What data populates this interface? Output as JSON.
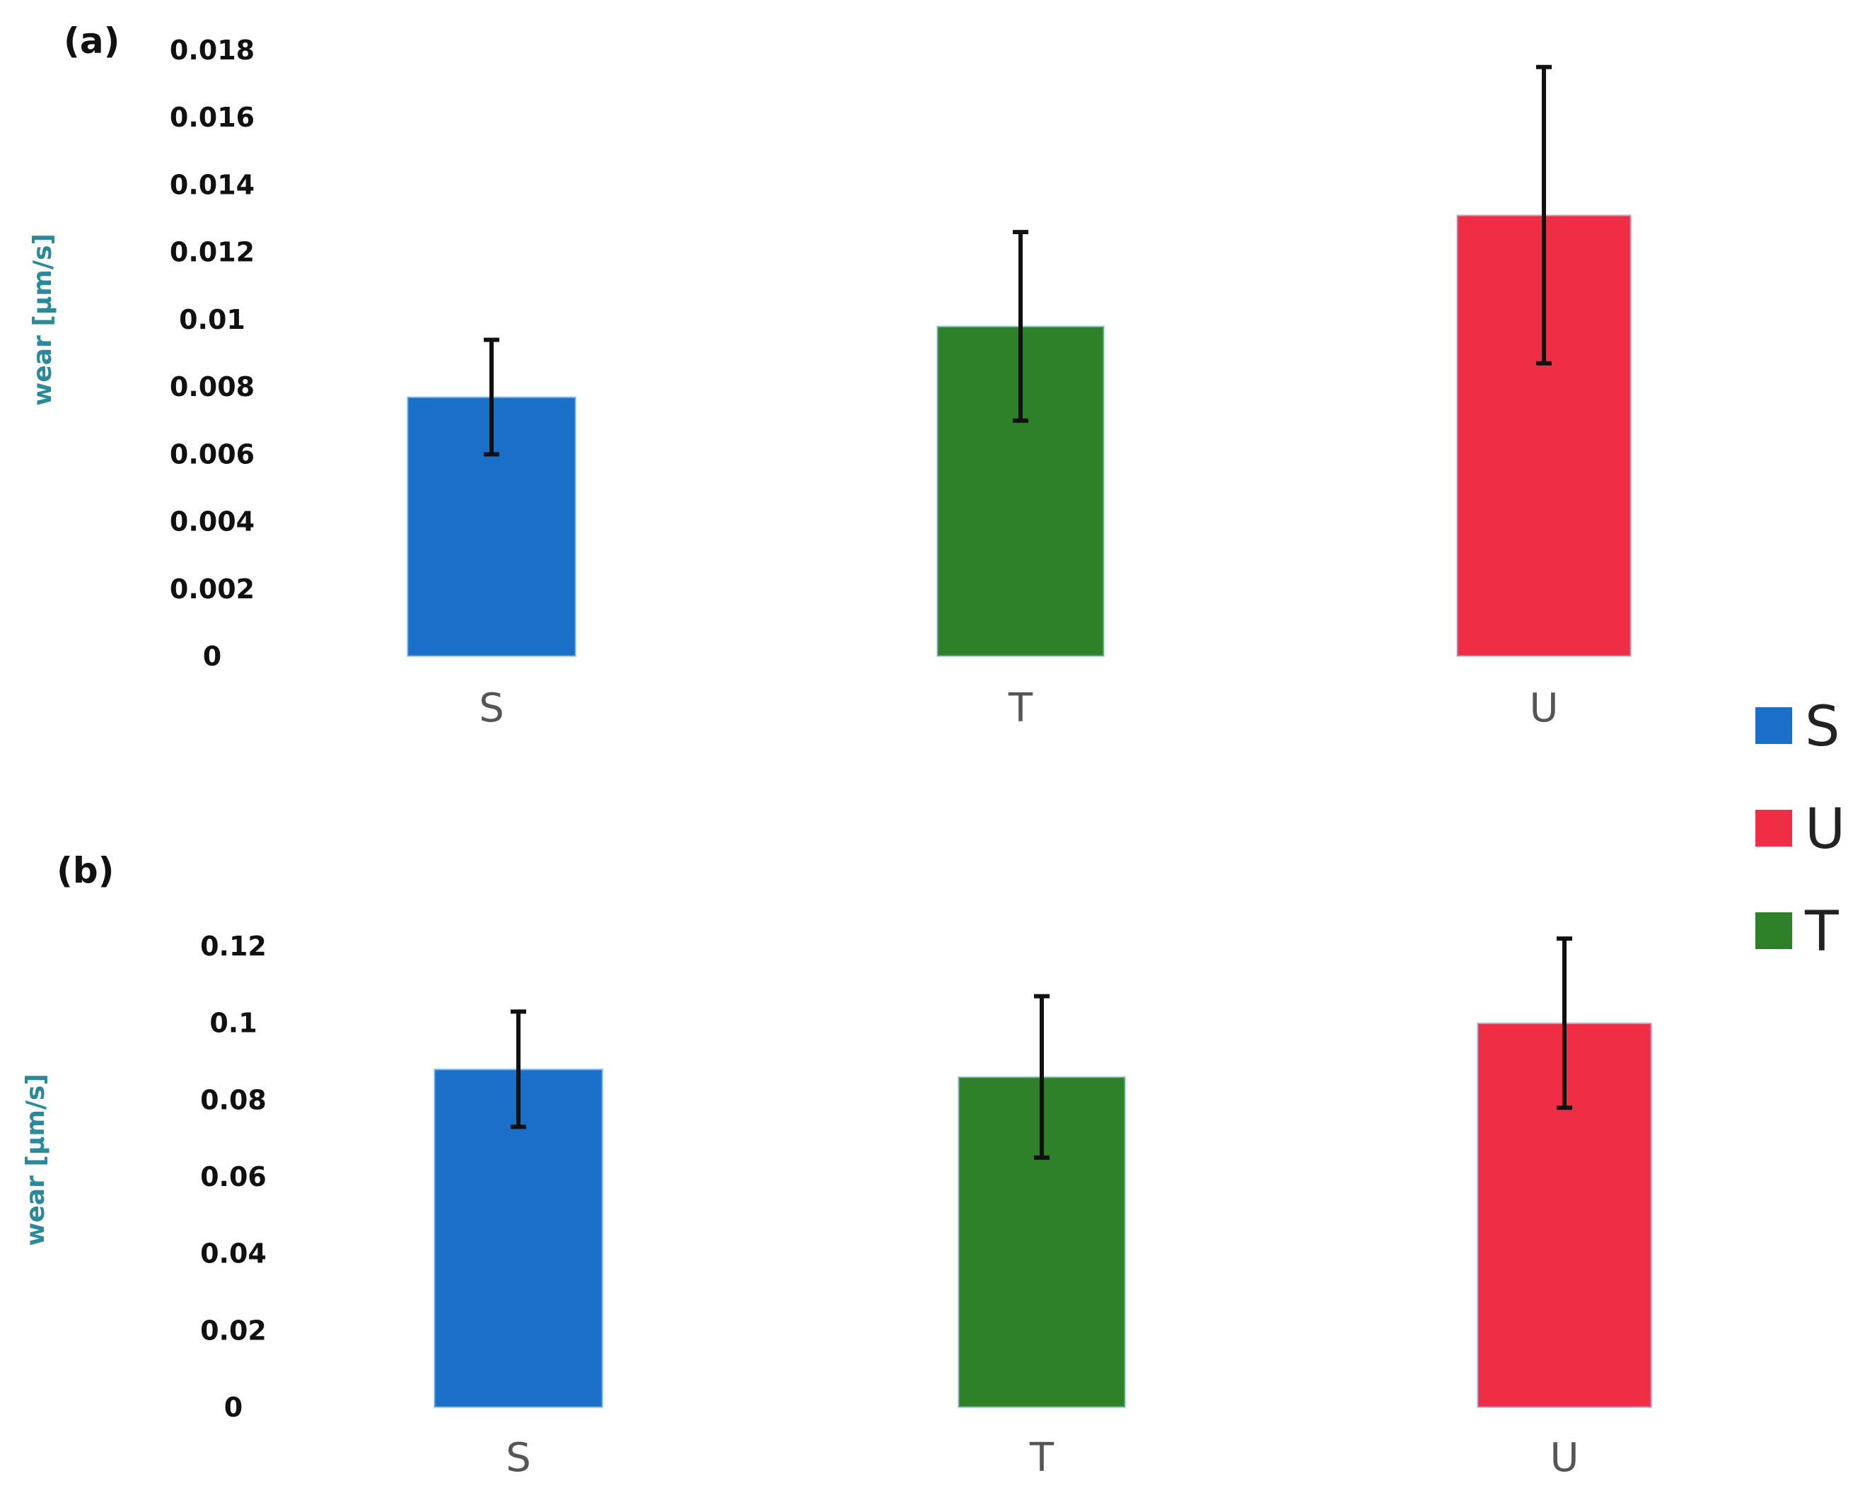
{
  "colors": {
    "S": "#1a70c9",
    "T": "#2f8129",
    "U": "#ef2d45",
    "ylabel": "#2a8a9a"
  },
  "legend": [
    {
      "label": "S",
      "key": "S"
    },
    {
      "label": "U",
      "key": "U"
    },
    {
      "label": "T",
      "key": "T"
    }
  ],
  "chart_data": [
    {
      "panel": "(a)",
      "type": "bar",
      "ylabel": "wear [μm/s]",
      "ylim": [
        0,
        0.018
      ],
      "yticks": [
        "0",
        "0.002",
        "0.004",
        "0.006",
        "0.008",
        "0.01",
        "0.012",
        "0.014",
        "0.016",
        "0.018"
      ],
      "categories": [
        "S",
        "T",
        "U"
      ],
      "values": [
        0.0077,
        0.0098,
        0.0131
      ],
      "errors": [
        0.0017,
        0.0028,
        0.0044
      ]
    },
    {
      "panel": "(b)",
      "type": "bar",
      "ylabel": "wear [μm/s]",
      "ylim": [
        0,
        0.12
      ],
      "yticks": [
        "0",
        "0.02",
        "0.04",
        "0.06",
        "0.08",
        "0.1",
        "0.12"
      ],
      "categories": [
        "S",
        "T",
        "U"
      ],
      "values": [
        0.088,
        0.086,
        0.1
      ],
      "errors": [
        0.015,
        0.021,
        0.022
      ]
    }
  ]
}
